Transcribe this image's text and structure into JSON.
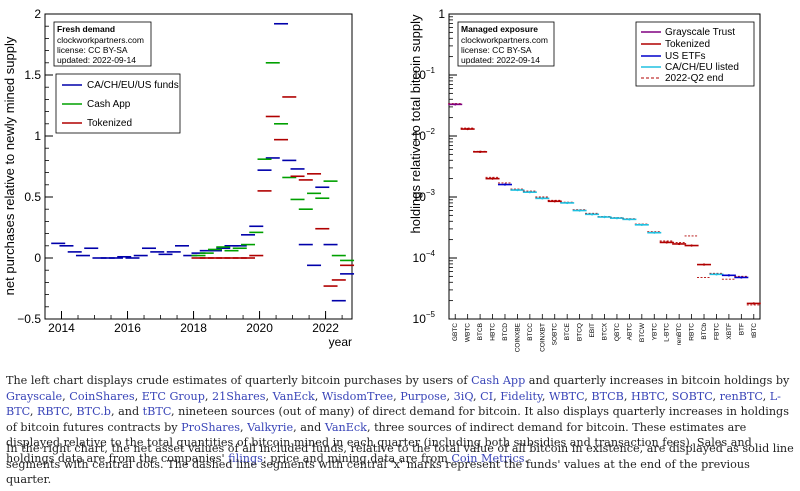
{
  "colors": {
    "funds": "#0000aa",
    "cash_app": "#00a000",
    "tokenized": "#b00000",
    "grayscale": "#800080",
    "us_etfs": "#0000cc",
    "caeu": "#20c0e0",
    "q2end": "#b00000"
  },
  "left": {
    "infobox": {
      "title": "Fresh demand",
      "line1": "clockworkpartners.com",
      "line2": "license: CC BY-SA",
      "line3": "updated: 2022-09-14"
    },
    "ylabel": "net purchases relative to newly mined supply",
    "xlabel": "year",
    "yticks": [
      "−0.5",
      "0",
      "0.5",
      "1",
      "1.5",
      "2"
    ],
    "xticks": [
      "2014",
      "2016",
      "2018",
      "2020",
      "2022"
    ],
    "legend": [
      "CA/CH/EU/US funds",
      "Cash App",
      "Tokenized"
    ]
  },
  "right": {
    "infobox": {
      "title": "Managed exposure",
      "line1": "clockworkpartners.com",
      "line2": "license: CC BY-SA",
      "line3": "updated: 2022-09-14"
    },
    "ylabel": "holdings relative to total bitcoin supply",
    "yticks": [
      "10",
      "10",
      "10",
      "10",
      "10",
      "1"
    ],
    "yexps": [
      "−5",
      "−4",
      "−3",
      "−2",
      "−1",
      ""
    ],
    "legend": [
      "Grayscale Trust",
      "Tokenized",
      "US ETFs",
      "CA/CH/EU listed",
      "2022-Q2 end"
    ]
  },
  "chart_data": [
    {
      "type": "scatter",
      "title": "",
      "xlabel": "year",
      "ylabel": "net purchases relative to newly mined supply",
      "xlim": [
        2013.5,
        2022.8
      ],
      "ylim": [
        -0.5,
        2
      ],
      "grid": false,
      "legend_position": "top-left",
      "series": [
        {
          "name": "CA/CH/EU/US funds",
          "color": "#0000aa",
          "points": [
            [
              2013.9,
              0.12
            ],
            [
              2014.15,
              0.1
            ],
            [
              2014.4,
              0.05
            ],
            [
              2014.65,
              0.02
            ],
            [
              2014.9,
              0.08
            ],
            [
              2015.15,
              0.0
            ],
            [
              2015.4,
              0.0
            ],
            [
              2015.65,
              0.0
            ],
            [
              2015.9,
              0.01
            ],
            [
              2016.15,
              0.0
            ],
            [
              2016.4,
              0.02
            ],
            [
              2016.65,
              0.08
            ],
            [
              2016.9,
              0.05
            ],
            [
              2017.15,
              0.03
            ],
            [
              2017.4,
              0.05
            ],
            [
              2017.65,
              0.1
            ],
            [
              2017.9,
              0.02
            ],
            [
              2018.15,
              0.04
            ],
            [
              2018.4,
              0.06
            ],
            [
              2018.65,
              0.06
            ],
            [
              2018.9,
              0.08
            ],
            [
              2019.15,
              0.1
            ],
            [
              2019.4,
              0.1
            ],
            [
              2019.65,
              0.19
            ],
            [
              2019.9,
              0.26
            ],
            [
              2020.15,
              0.72
            ],
            [
              2020.4,
              0.82
            ],
            [
              2020.65,
              1.92
            ],
            [
              2020.9,
              0.8
            ],
            [
              2021.15,
              0.73
            ],
            [
              2021.4,
              0.11
            ],
            [
              2021.65,
              -0.06
            ],
            [
              2021.9,
              0.58
            ],
            [
              2022.15,
              0.11
            ],
            [
              2022.4,
              -0.35
            ],
            [
              2022.65,
              -0.13
            ]
          ]
        },
        {
          "name": "Cash App",
          "color": "#00a000",
          "points": [
            [
              2018.15,
              0.02
            ],
            [
              2018.4,
              0.04
            ],
            [
              2018.65,
              0.07
            ],
            [
              2018.9,
              0.09
            ],
            [
              2019.15,
              0.06
            ],
            [
              2019.4,
              0.08
            ],
            [
              2019.65,
              0.11
            ],
            [
              2019.9,
              0.21
            ],
            [
              2020.15,
              0.81
            ],
            [
              2020.4,
              1.6
            ],
            [
              2020.65,
              1.1
            ],
            [
              2020.9,
              0.66
            ],
            [
              2021.15,
              0.48
            ],
            [
              2021.4,
              0.4
            ],
            [
              2021.65,
              0.53
            ],
            [
              2021.9,
              0.49
            ],
            [
              2022.15,
              0.63
            ],
            [
              2022.4,
              0.02
            ],
            [
              2022.65,
              -0.02
            ]
          ]
        },
        {
          "name": "Tokenized",
          "color": "#b00000",
          "points": [
            [
              2018.15,
              0.0
            ],
            [
              2018.4,
              0.0
            ],
            [
              2018.65,
              0.0
            ],
            [
              2018.9,
              0.0
            ],
            [
              2019.15,
              0.0
            ],
            [
              2019.4,
              0.0
            ],
            [
              2019.65,
              0.0
            ],
            [
              2019.9,
              0.02
            ],
            [
              2020.15,
              0.55
            ],
            [
              2020.4,
              1.16
            ],
            [
              2020.65,
              0.97
            ],
            [
              2020.9,
              1.32
            ],
            [
              2021.15,
              0.67
            ],
            [
              2021.4,
              0.64
            ],
            [
              2021.65,
              0.69
            ],
            [
              2021.9,
              0.24
            ],
            [
              2022.15,
              -0.23
            ],
            [
              2022.4,
              -0.18
            ],
            [
              2022.65,
              -0.06
            ]
          ]
        }
      ]
    },
    {
      "type": "scatter",
      "title": "",
      "xlabel": "",
      "ylabel": "holdings relative to total bitcoin supply",
      "ylim": [
        1e-05,
        1
      ],
      "y_scale": "log",
      "grid": false,
      "legend_position": "top-right",
      "categories": [
        "GBTC",
        "WBTC",
        "BTCB",
        "HBTC",
        "BTCD",
        "COINXBE",
        "BTCC",
        "COINXBT",
        "SOBTC",
        "BTCE",
        "BTCQ",
        "EBIT",
        "BTCX",
        "QBTC",
        "ABTC",
        "BTCW",
        "YBTC",
        "L-BTC",
        "renBTC",
        "RBTC",
        "BTCb",
        "FBTC",
        "XBTF",
        "BTF",
        "tBTC"
      ],
      "series": [
        {
          "name": "holdings",
          "values": [
            0.033,
            0.013,
            0.0055,
            0.002,
            0.0016,
            0.0013,
            0.0012,
            0.00095,
            0.00085,
            0.0008,
            0.0006,
            0.00052,
            0.00047,
            0.00045,
            0.00043,
            0.00035,
            0.00026,
            0.00018,
            0.00017,
            0.00016,
            7.8e-05,
            5.4e-05,
            5.2e-05,
            4.8e-05,
            1.8e-05
          ],
          "colors": [
            "#800080",
            "#b00000",
            "#b00000",
            "#b00000",
            "#0000cc",
            "#20c0e0",
            "#20c0e0",
            "#20c0e0",
            "#b00000",
            "#20c0e0",
            "#20c0e0",
            "#20c0e0",
            "#20c0e0",
            "#20c0e0",
            "#20c0e0",
            "#20c0e0",
            "#20c0e0",
            "#b00000",
            "#b00000",
            "#b00000",
            "#b00000",
            "#20c0e0",
            "#0000cc",
            "#0000cc",
            "#b00000"
          ]
        },
        {
          "name": "2022-Q2 end",
          "values": [
            0.034,
            0.0135,
            0.0056,
            0.0021,
            0.0017,
            0.00135,
            0.00125,
            0.001,
            0.00088,
            0.00082,
            0.00062,
            0.00054,
            0.00048,
            0.00046,
            0.00044,
            0.00036,
            0.00027,
            0.00019,
            0.00018,
            0.00023,
            4.8e-05,
            5.6e-05,
            4.5e-05,
            5e-05,
            1.7e-05
          ]
        }
      ]
    }
  ],
  "captions": {
    "p1": [
      {
        "t": "The left chart displays crude estimates of quarterly bitcoin purchases by users of ",
        "l": false
      },
      {
        "t": "Cash App",
        "l": true
      },
      {
        "t": " and quarterly increases in bitcoin holdings by ",
        "l": false
      },
      {
        "t": "Grayscale",
        "l": true
      },
      {
        "t": ", ",
        "l": false
      },
      {
        "t": "CoinShares",
        "l": true
      },
      {
        "t": ", ",
        "l": false
      },
      {
        "t": "ETC Group",
        "l": true
      },
      {
        "t": ", ",
        "l": false
      },
      {
        "t": "21Shares",
        "l": true
      },
      {
        "t": ", ",
        "l": false
      },
      {
        "t": "VanEck",
        "l": true
      },
      {
        "t": ", ",
        "l": false
      },
      {
        "t": "WisdomTree",
        "l": true
      },
      {
        "t": ", ",
        "l": false
      },
      {
        "t": "Purpose",
        "l": true
      },
      {
        "t": ", ",
        "l": false
      },
      {
        "t": "3iQ",
        "l": true
      },
      {
        "t": ", ",
        "l": false
      },
      {
        "t": "CI",
        "l": true
      },
      {
        "t": ", ",
        "l": false
      },
      {
        "t": "Fidelity",
        "l": true
      },
      {
        "t": ", ",
        "l": false
      },
      {
        "t": "WBTC",
        "l": true
      },
      {
        "t": ", ",
        "l": false
      },
      {
        "t": "BTCB",
        "l": true
      },
      {
        "t": ", ",
        "l": false
      },
      {
        "t": "HBTC",
        "l": true
      },
      {
        "t": ", ",
        "l": false
      },
      {
        "t": "SOBTC",
        "l": true
      },
      {
        "t": ", ",
        "l": false
      },
      {
        "t": "renBTC",
        "l": true
      },
      {
        "t": ", ",
        "l": false
      },
      {
        "t": "L-BTC",
        "l": true
      },
      {
        "t": ", ",
        "l": false
      },
      {
        "t": "RBTC",
        "l": true
      },
      {
        "t": ", ",
        "l": false
      },
      {
        "t": "BTC.b",
        "l": true
      },
      {
        "t": ", and ",
        "l": false
      },
      {
        "t": "tBTC",
        "l": true
      },
      {
        "t": ", nineteen sources (out of many) of direct demand for bitcoin. It also displays quarterly increases in holdings of bitcoin futures contracts by ",
        "l": false
      },
      {
        "t": "ProShares",
        "l": true
      },
      {
        "t": ", ",
        "l": false
      },
      {
        "t": "Valkyrie",
        "l": true
      },
      {
        "t": ", and ",
        "l": false
      },
      {
        "t": "VanEck",
        "l": true
      },
      {
        "t": ", three sources of indirect demand for bitcoin. These estimates are displayed relative to the total quantities of bitcoin mined in each quarter (including both subsidies and transaction fees). Sales and holdings data are from the companies' ",
        "l": false
      },
      {
        "t": "filings",
        "l": true
      },
      {
        "t": "; price and mining data are from ",
        "l": false
      },
      {
        "t": "Coin Metrics",
        "l": true
      },
      {
        "t": ".",
        "l": false
      }
    ],
    "p2": "In the right chart, the net asset values of all included funds, relative to the total value of all bitcoin in existence, are displayed as solid line segments with central dots. The dashed line segments with central 'x' marks represent the funds' values at the end of the previous quarter."
  }
}
